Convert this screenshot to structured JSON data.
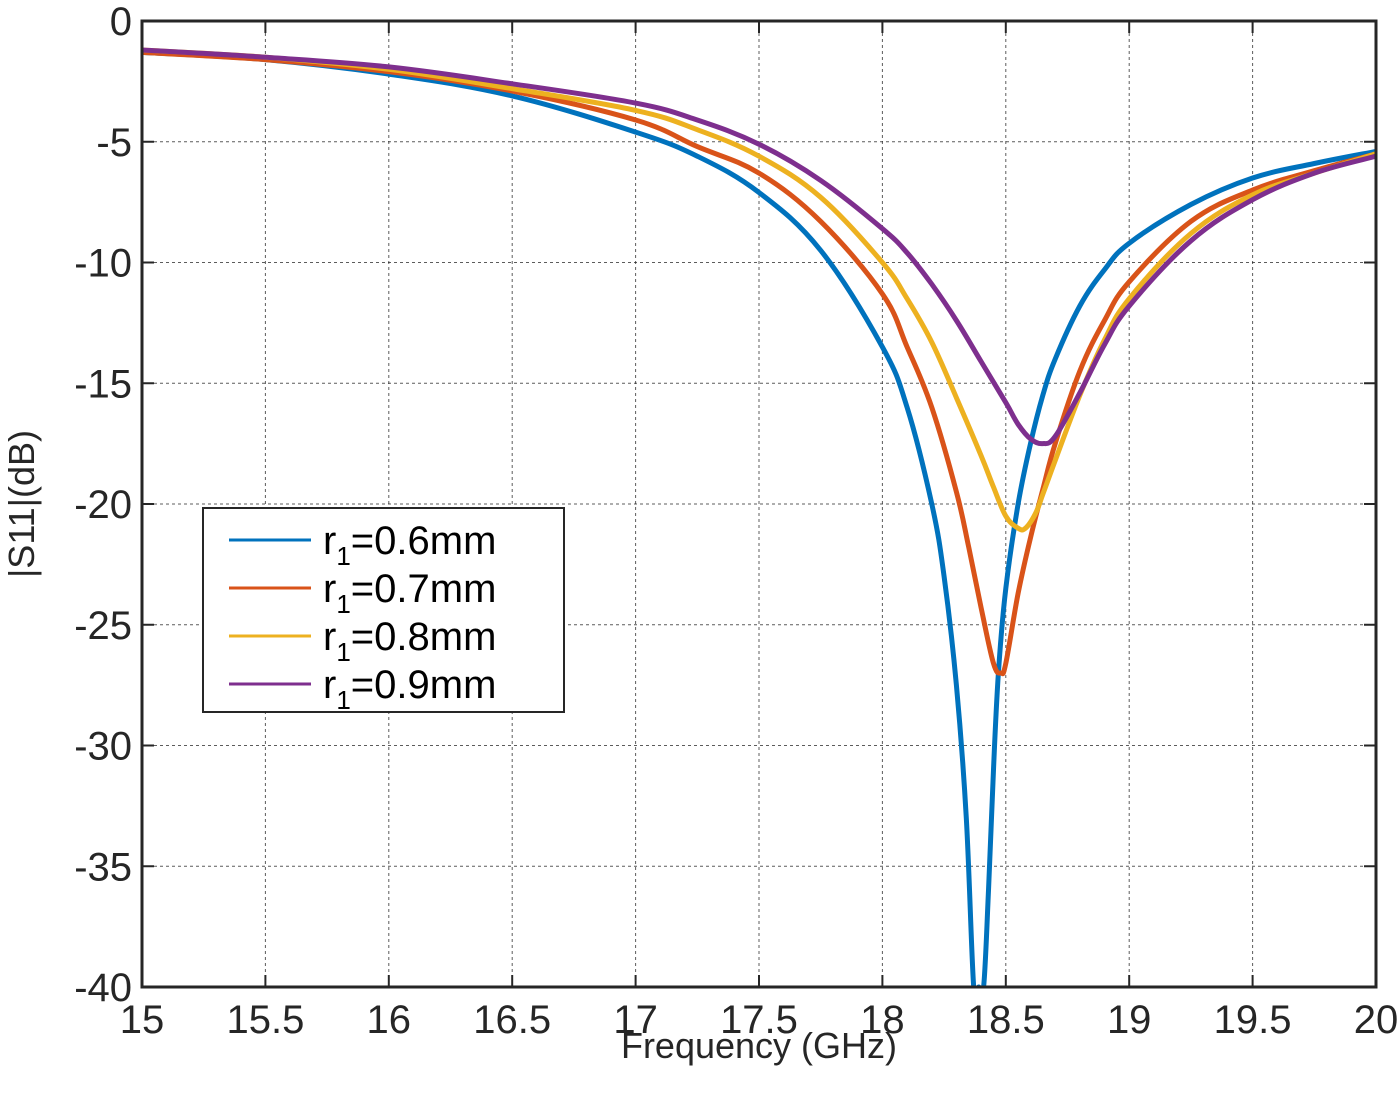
{
  "chart_data": {
    "type": "line",
    "xlabel": "Frequency (GHz)",
    "ylabel": "|S11|(dB)",
    "xlim": [
      15,
      20
    ],
    "ylim": [
      -40,
      0
    ],
    "xticks": [
      15,
      15.5,
      16,
      16.5,
      17,
      17.5,
      18,
      18.5,
      19,
      19.5,
      20
    ],
    "yticks": [
      0,
      -5,
      -10,
      -15,
      -20,
      -25,
      -30,
      -35,
      -40
    ],
    "xtick_labels": [
      "15",
      "15.5",
      "16",
      "16.5",
      "17",
      "17.5",
      "18",
      "18.5",
      "19",
      "19.5",
      "20"
    ],
    "ytick_labels": [
      "0",
      "-5",
      "-10",
      "-15",
      "-20",
      "-25",
      "-30",
      "-35",
      "-40"
    ],
    "grid": true,
    "legend_position": "left-middle",
    "series": [
      {
        "name": "r",
        "subscript": "1",
        "suffix": "=0.6mm",
        "color": "#0072BD",
        "x": [
          15,
          15.5,
          16,
          16.5,
          17,
          17.25,
          17.5,
          17.75,
          18,
          18.1,
          18.2,
          18.25,
          18.3,
          18.34,
          18.37,
          18.39,
          18.41,
          18.43,
          18.45,
          18.47,
          18.5,
          18.55,
          18.6,
          18.65,
          18.7,
          18.8,
          18.9,
          19,
          19.25,
          19.5,
          19.75,
          20
        ],
        "y": [
          -1.3,
          -1.6,
          -2.2,
          -3.1,
          -4.6,
          -5.6,
          -7.1,
          -9.5,
          -13.5,
          -16,
          -20,
          -23,
          -27.5,
          -33,
          -40,
          -40,
          -40,
          -36,
          -31,
          -27,
          -23.5,
          -20,
          -17.5,
          -15.5,
          -14,
          -11.8,
          -10.3,
          -9.2,
          -7.6,
          -6.5,
          -5.9,
          -5.4
        ]
      },
      {
        "name": "r",
        "subscript": "1",
        "suffix": "=0.7mm",
        "color": "#D95319",
        "x": [
          15,
          15.5,
          16,
          16.5,
          17,
          17.25,
          17.5,
          17.75,
          18,
          18.1,
          18.2,
          18.3,
          18.35,
          18.4,
          18.45,
          18.48,
          18.5,
          18.55,
          18.6,
          18.65,
          18.7,
          18.8,
          18.9,
          19,
          19.25,
          19.5,
          19.75,
          20
        ],
        "y": [
          -1.3,
          -1.6,
          -2.1,
          -2.9,
          -4.1,
          -5.2,
          -6.3,
          -8.3,
          -11.3,
          -13.5,
          -16,
          -19.5,
          -21.8,
          -24.3,
          -26.6,
          -27,
          -26.6,
          -23.7,
          -21.4,
          -19.4,
          -17.5,
          -14.5,
          -12.4,
          -10.8,
          -8.3,
          -7,
          -6.2,
          -5.5
        ]
      },
      {
        "name": "r",
        "subscript": "1",
        "suffix": "=0.8mm",
        "color": "#EDB120",
        "x": [
          15,
          15.5,
          16,
          16.5,
          17,
          17.25,
          17.5,
          17.75,
          18,
          18.1,
          18.2,
          18.3,
          18.4,
          18.45,
          18.5,
          18.55,
          18.58,
          18.62,
          18.65,
          18.7,
          18.8,
          18.9,
          19,
          19.25,
          19.5,
          19.75,
          20
        ],
        "y": [
          -1.2,
          -1.5,
          -2,
          -2.8,
          -3.7,
          -4.5,
          -5.6,
          -7.3,
          -10,
          -11.5,
          -13.3,
          -15.6,
          -18,
          -19.3,
          -20.5,
          -21,
          -21,
          -20.4,
          -19.6,
          -18.2,
          -15.5,
          -13.2,
          -11.5,
          -8.8,
          -7.2,
          -6.3,
          -5.5
        ]
      },
      {
        "name": "r",
        "subscript": "1",
        "suffix": "=0.9mm",
        "color": "#7E2F8E",
        "x": [
          15,
          15.5,
          16,
          16.5,
          17,
          17.25,
          17.5,
          17.75,
          18,
          18.1,
          18.2,
          18.3,
          18.4,
          18.5,
          18.55,
          18.6,
          18.65,
          18.7,
          18.8,
          18.9,
          19,
          19.25,
          19.5,
          19.75,
          20
        ],
        "y": [
          -1.2,
          -1.5,
          -1.9,
          -2.6,
          -3.4,
          -4.1,
          -5.1,
          -6.6,
          -8.6,
          -9.6,
          -10.9,
          -12.4,
          -14.1,
          -15.8,
          -16.7,
          -17.3,
          -17.5,
          -17.2,
          -15.4,
          -13.4,
          -11.8,
          -9.1,
          -7.4,
          -6.3,
          -5.6
        ]
      }
    ]
  }
}
